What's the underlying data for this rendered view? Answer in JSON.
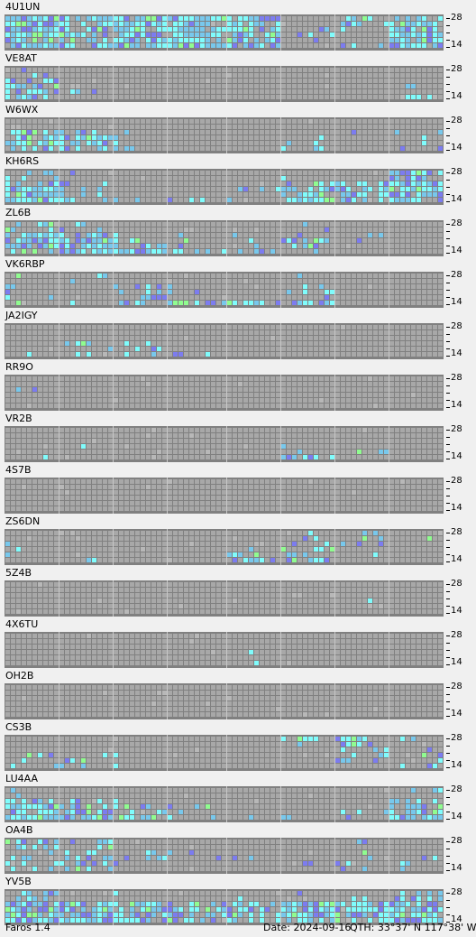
{
  "stations": [
    {
      "callsign": "4U1UN",
      "activity": [
        [
          1.0,
          0.78,
          0.95,
          0.92,
          0.9,
          0.05,
          0.15,
          0.7
        ],
        [
          0.95,
          0.7,
          0.85,
          0.9,
          0.85,
          0.1,
          0.05,
          0.75
        ],
        [
          0.9,
          0.7,
          0.9,
          0.85,
          0.8,
          0.1,
          0.15,
          0.7
        ],
        [
          0.95,
          0.9,
          0.9,
          0.85,
          0.8,
          0.15,
          0.3,
          0.75
        ]
      ]
    },
    {
      "callsign": "VE8AT",
      "activity": [
        [
          0.1,
          0.0,
          0.0,
          0.0,
          0.0,
          0.0,
          0.0,
          0.0
        ],
        [
          0.6,
          0.05,
          0.0,
          0.0,
          0.0,
          0.0,
          0.0,
          0.0
        ],
        [
          0.55,
          0.05,
          0.0,
          0.0,
          0.0,
          0.0,
          0.0,
          0.05
        ],
        [
          0.6,
          0.05,
          0.0,
          0.0,
          0.0,
          0.0,
          0.0,
          0.5
        ]
      ]
    },
    {
      "callsign": "W6WX",
      "activity": [
        [
          0.05,
          0.0,
          0.0,
          0.0,
          0.0,
          0.0,
          0.0,
          0.0
        ],
        [
          0.6,
          0.35,
          0.05,
          0.0,
          0.0,
          0.1,
          0.05,
          0.1
        ],
        [
          0.7,
          0.55,
          0.1,
          0.0,
          0.0,
          0.2,
          0.05,
          0.15
        ],
        [
          0.65,
          0.55,
          0.15,
          0.05,
          0.0,
          0.2,
          0.1,
          0.15
        ]
      ]
    },
    {
      "callsign": "KH6RS",
      "activity": [
        [
          0.3,
          0.05,
          0.0,
          0.0,
          0.0,
          0.05,
          0.1,
          0.8
        ],
        [
          0.7,
          0.25,
          0.05,
          0.0,
          0.05,
          0.35,
          0.5,
          0.85
        ],
        [
          0.95,
          0.35,
          0.1,
          0.05,
          0.1,
          0.8,
          0.7,
          0.9
        ],
        [
          0.95,
          0.4,
          0.2,
          0.15,
          0.2,
          0.85,
          0.55,
          0.75
        ]
      ]
    },
    {
      "callsign": "ZL6B",
      "activity": [
        [
          0.4,
          0.1,
          0.0,
          0.0,
          0.0,
          0.1,
          0.0,
          0.0
        ],
        [
          0.8,
          0.55,
          0.2,
          0.05,
          0.05,
          0.25,
          0.05,
          0.0
        ],
        [
          0.9,
          0.85,
          0.3,
          0.1,
          0.15,
          0.4,
          0.05,
          0.0
        ],
        [
          0.5,
          0.85,
          0.6,
          0.65,
          0.55,
          0.25,
          0.0,
          0.0
        ]
      ]
    },
    {
      "callsign": "VK6RBP",
      "activity": [
        [
          0.05,
          0.1,
          0.05,
          0.0,
          0.0,
          0.1,
          0.0,
          0.0
        ],
        [
          0.2,
          0.05,
          0.25,
          0.0,
          0.0,
          0.2,
          0.0,
          0.0
        ],
        [
          0.15,
          0.05,
          0.3,
          0.05,
          0.0,
          0.25,
          0.0,
          0.0
        ],
        [
          0.2,
          0.05,
          0.5,
          0.6,
          0.75,
          0.6,
          0.0,
          0.0
        ]
      ]
    },
    {
      "callsign": "JA2IGY",
      "activity": [
        [
          0.0,
          0.0,
          0.0,
          0.0,
          0.0,
          0.0,
          0.0,
          0.0
        ],
        [
          0.0,
          0.0,
          0.0,
          0.0,
          0.0,
          0.0,
          0.0,
          0.0
        ],
        [
          0.0,
          0.25,
          0.2,
          0.0,
          0.0,
          0.0,
          0.0,
          0.0
        ],
        [
          0.05,
          0.15,
          0.15,
          0.1,
          0.25,
          0.1,
          0.0,
          0.0
        ]
      ]
    },
    {
      "callsign": "RR9O",
      "activity": [
        [
          0.0,
          0.0,
          0.0,
          0.0,
          0.0,
          0.0,
          0.0,
          0.0
        ],
        [
          0.05,
          0.0,
          0.0,
          0.0,
          0.0,
          0.0,
          0.0,
          0.0
        ],
        [
          0.0,
          0.0,
          0.0,
          0.0,
          0.0,
          0.0,
          0.0,
          0.0
        ],
        [
          0.0,
          0.05,
          0.0,
          0.0,
          0.0,
          0.0,
          0.0,
          0.0
        ]
      ]
    },
    {
      "callsign": "VR2B",
      "activity": [
        [
          0.0,
          0.0,
          0.0,
          0.0,
          0.0,
          0.0,
          0.0,
          0.0
        ],
        [
          0.0,
          0.0,
          0.0,
          0.0,
          0.0,
          0.0,
          0.0,
          0.0
        ],
        [
          0.05,
          0.1,
          0.1,
          0.0,
          0.0,
          0.1,
          0.1,
          0.0
        ],
        [
          0.05,
          0.05,
          0.0,
          0.0,
          0.0,
          0.3,
          0.0,
          0.0
        ]
      ]
    },
    {
      "callsign": "4S7B",
      "activity": [
        [
          0.0,
          0.0,
          0.0,
          0.0,
          0.0,
          0.0,
          0.0,
          0.0
        ],
        [
          0.0,
          0.0,
          0.0,
          0.0,
          0.0,
          0.0,
          0.0,
          0.0
        ],
        [
          0.0,
          0.0,
          0.0,
          0.0,
          0.0,
          0.0,
          0.0,
          0.0
        ],
        [
          0.0,
          0.0,
          0.0,
          0.0,
          0.0,
          0.0,
          0.0,
          0.0
        ]
      ]
    },
    {
      "callsign": "ZS6DN",
      "activity": [
        [
          0.0,
          0.0,
          0.0,
          0.0,
          0.0,
          0.05,
          0.3,
          0.05
        ],
        [
          0.05,
          0.05,
          0.0,
          0.0,
          0.1,
          0.3,
          0.4,
          0.05
        ],
        [
          0.1,
          0.1,
          0.0,
          0.0,
          0.25,
          0.45,
          0.1,
          0.0
        ],
        [
          0.05,
          0.15,
          0.0,
          0.0,
          0.5,
          0.5,
          0.0,
          0.0
        ]
      ]
    },
    {
      "callsign": "5Z4B",
      "activity": [
        [
          0.0,
          0.0,
          0.0,
          0.0,
          0.0,
          0.0,
          0.0,
          0.0
        ],
        [
          0.0,
          0.0,
          0.0,
          0.0,
          0.0,
          0.0,
          0.1,
          0.0
        ],
        [
          0.0,
          0.0,
          0.0,
          0.0,
          0.0,
          0.0,
          0.05,
          0.0
        ],
        [
          0.0,
          0.0,
          0.0,
          0.0,
          0.0,
          0.0,
          0.0,
          0.0
        ]
      ]
    },
    {
      "callsign": "4X6TU",
      "activity": [
        [
          0.0,
          0.0,
          0.0,
          0.0,
          0.0,
          0.0,
          0.0,
          0.0
        ],
        [
          0.0,
          0.0,
          0.0,
          0.0,
          0.05,
          0.0,
          0.0,
          0.0
        ],
        [
          0.0,
          0.0,
          0.0,
          0.0,
          0.1,
          0.0,
          0.0,
          0.0
        ],
        [
          0.0,
          0.0,
          0.0,
          0.0,
          0.1,
          0.0,
          0.0,
          0.0
        ]
      ]
    },
    {
      "callsign": "OH2B",
      "activity": [
        [
          0.0,
          0.0,
          0.0,
          0.0,
          0.0,
          0.0,
          0.0,
          0.0
        ],
        [
          0.0,
          0.0,
          0.0,
          0.0,
          0.0,
          0.0,
          0.0,
          0.0
        ],
        [
          0.0,
          0.0,
          0.0,
          0.0,
          0.0,
          0.0,
          0.0,
          0.0
        ],
        [
          0.0,
          0.0,
          0.0,
          0.0,
          0.0,
          0.0,
          0.0,
          0.0
        ]
      ]
    },
    {
      "callsign": "CS3B",
      "activity": [
        [
          0.0,
          0.0,
          0.0,
          0.0,
          0.0,
          0.2,
          0.5,
          0.1
        ],
        [
          0.0,
          0.0,
          0.0,
          0.0,
          0.0,
          0.0,
          0.3,
          0.15
        ],
        [
          0.3,
          0.1,
          0.0,
          0.0,
          0.0,
          0.0,
          0.2,
          0.2
        ],
        [
          0.35,
          0.15,
          0.05,
          0.0,
          0.0,
          0.0,
          0.0,
          0.2
        ]
      ]
    },
    {
      "callsign": "LU4AA",
      "activity": [
        [
          0.1,
          0.05,
          0.0,
          0.0,
          0.0,
          0.0,
          0.0,
          0.15
        ],
        [
          0.6,
          0.4,
          0.1,
          0.0,
          0.0,
          0.0,
          0.0,
          0.35
        ],
        [
          0.9,
          0.65,
          0.3,
          0.05,
          0.0,
          0.0,
          0.05,
          0.6
        ],
        [
          0.95,
          0.75,
          0.45,
          0.15,
          0.1,
          0.1,
          0.1,
          0.8
        ]
      ]
    },
    {
      "callsign": "OA4B",
      "activity": [
        [
          0.35,
          0.15,
          0.0,
          0.0,
          0.0,
          0.0,
          0.05,
          0.0
        ],
        [
          0.3,
          0.55,
          0.3,
          0.1,
          0.05,
          0.05,
          0.15,
          0.1
        ],
        [
          0.2,
          0.5,
          0.2,
          0.1,
          0.05,
          0.05,
          0.15,
          0.15
        ],
        [
          0.35,
          0.35,
          0.15,
          0.05,
          0.0,
          0.0,
          0.2,
          0.15
        ]
      ]
    },
    {
      "callsign": "YV5B",
      "activity": [
        [
          0.3,
          0.05,
          0.0,
          0.0,
          0.1,
          0.1,
          0.1,
          0.4
        ],
        [
          0.85,
          0.7,
          0.6,
          0.4,
          0.55,
          0.8,
          0.85,
          0.7
        ],
        [
          0.9,
          0.85,
          0.8,
          0.6,
          0.55,
          0.85,
          0.85,
          0.9
        ],
        [
          0.95,
          0.9,
          0.75,
          0.6,
          0.5,
          0.7,
          0.6,
          0.85
        ]
      ]
    }
  ],
  "scale": {
    "top_label": "28",
    "bottom_label": "14"
  },
  "status": {
    "app_name": "Faros 1.4",
    "date_text": "Date: 2024-09-16",
    "qth_text": "QTH: 33°37' N  117°38' W"
  },
  "colors": {
    "grid_background": "#808080",
    "cell_empty": "#a8a8a8",
    "hour_line": "#c8c8c8",
    "cell_weak": "#7c7cf0",
    "cell_medium": "#78c8ec",
    "cell_strong": "#80fcfc",
    "cell_peak": "#90fc90",
    "cell_noise": "#b8b8b8"
  }
}
